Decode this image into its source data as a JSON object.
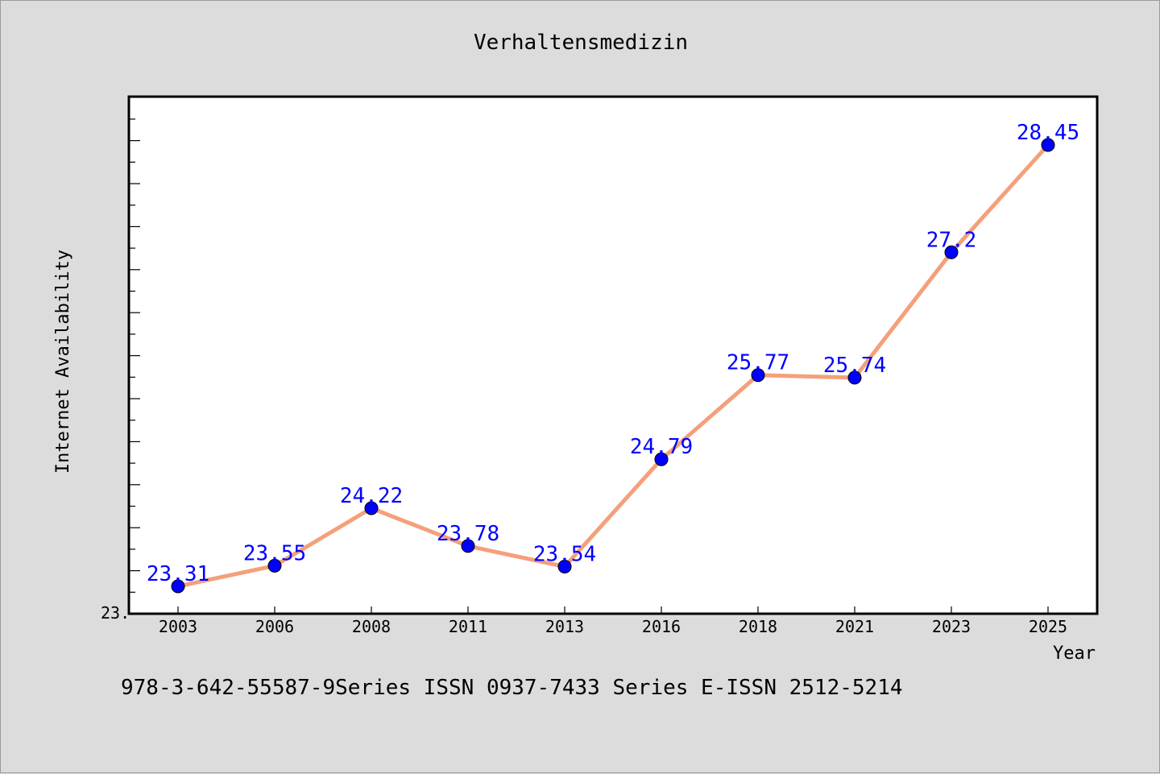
{
  "chart_data": {
    "type": "line",
    "title": "Verhaltensmedizin",
    "xlabel": "Year",
    "ylabel": "Internet Availability",
    "categories": [
      "2003",
      "2006",
      "2008",
      "2011",
      "2013",
      "2016",
      "2018",
      "2021",
      "2023",
      "2025"
    ],
    "values": [
      23.31,
      23.55,
      24.22,
      23.78,
      23.54,
      24.79,
      25.77,
      25.74,
      27.2,
      28.45
    ],
    "data_labels": [
      "23.31",
      "23.55",
      "24.22",
      "23.78",
      "23.54",
      "24.79",
      "25.77",
      "25.74",
      "27.2",
      "28.45"
    ],
    "y_tick_label": "23.",
    "ylim": [
      23.0,
      29.0
    ],
    "grid": false,
    "legend": "none",
    "line_color": "#f4a07a",
    "marker_color": "#0000ff",
    "label_color": "#0000ff"
  },
  "footer": {
    "text": "978-3-642-55587-9Series ISSN 0937-7433 Series E-ISSN 2512-5214"
  }
}
